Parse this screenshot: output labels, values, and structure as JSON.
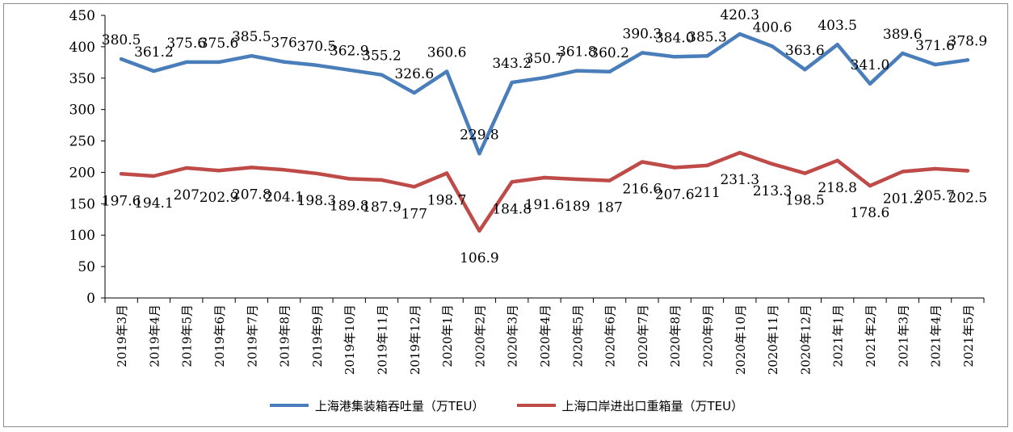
{
  "chart_data": {
    "type": "line",
    "categories": [
      "2019年3月",
      "2019年4月",
      "2019年5月",
      "2019年6月",
      "2019年7月",
      "2019年8月",
      "2019年9月",
      "2019年10月",
      "2019年11月",
      "2019年12月",
      "2020年1月",
      "2020年2月",
      "2020年3月",
      "2020年4月",
      "2020年5月",
      "2020年6月",
      "2020年7月",
      "2020年8月",
      "2020年9月",
      "2020年10月",
      "2020年11月",
      "2020年12月",
      "2021年1月",
      "2021年2月",
      "2021年3月",
      "2021年4月",
      "2021年5月"
    ],
    "series": [
      {
        "name": "上海港集装箱吞吐量（万TEU）",
        "color": "#4a7ebb",
        "values": [
          380.5,
          361.2,
          375.6,
          375.6,
          385.5,
          376,
          370.5,
          362.9,
          355.2,
          326.6,
          360.6,
          229.8,
          343.2,
          350.7,
          361.8,
          360.2,
          390.3,
          384.0,
          385.3,
          420.3,
          400.6,
          363.6,
          403.5,
          341.0,
          389.6,
          371.6,
          378.9
        ],
        "labels": [
          "380.5",
          "361.2",
          "375.6",
          "375.6",
          "385.5",
          "376",
          "370.5",
          "362.9",
          "355.2",
          "326.6",
          "360.6",
          "229.8",
          "343.2",
          "350.7",
          "361.8",
          "360.2",
          "390.3",
          "384.0",
          "385.3",
          "420.3",
          "400.6",
          "363.6",
          "403.5",
          "341.0",
          "389.6",
          "371.6",
          "378.9"
        ]
      },
      {
        "name": "上海口岸进出口重箱量（万TEU）",
        "color": "#be4b48",
        "values": [
          197.6,
          194.1,
          207,
          202.9,
          207.8,
          204.1,
          198.3,
          189.8,
          187.9,
          177,
          198.7,
          106.9,
          184.8,
          191.6,
          189,
          187,
          216.6,
          207.6,
          211,
          231.3,
          213.3,
          198.5,
          218.8,
          178.6,
          201.2,
          205.7,
          202.5
        ],
        "labels": [
          "197.6",
          "194.1",
          "207",
          "202.9",
          "207.8",
          "204.1",
          "198.3",
          "189.8",
          "187.9",
          "177",
          "198.7",
          "106.9",
          "184.8",
          "191.6",
          "189",
          "187",
          "216.6",
          "207.6",
          "211",
          "231.3",
          "213.3",
          "198.5",
          "218.8",
          "178.6",
          "201.2",
          "205.7",
          "202.5"
        ]
      }
    ],
    "ylim": [
      0,
      450
    ],
    "yticks": [
      "0",
      "50",
      "100",
      "150",
      "200",
      "250",
      "300",
      "350",
      "400",
      "450"
    ],
    "grid": false,
    "legend_position": "bottom"
  }
}
